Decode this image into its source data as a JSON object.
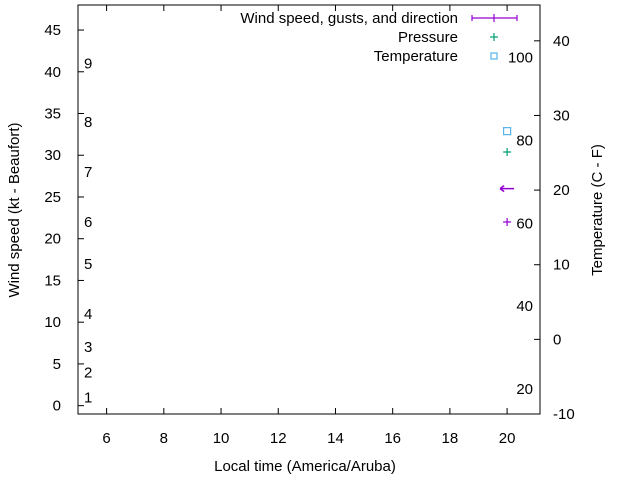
{
  "chart_data": {
    "type": "scatter",
    "xlabel": "Local time (America/Aruba)",
    "ylabel": "Wind speed (kt - Beaufort)",
    "y2label": "Temperature (C - F)",
    "xlim": [
      5,
      21.15
    ],
    "ylim": [
      -1,
      48
    ],
    "y2lim": [
      -10,
      44.8
    ],
    "xticks": [
      6,
      8,
      10,
      12,
      14,
      16,
      18,
      20
    ],
    "yticks": [
      0,
      5,
      10,
      15,
      20,
      25,
      30,
      35,
      40,
      45
    ],
    "y2ticks": [
      -10,
      0,
      10,
      20,
      30,
      40
    ],
    "beaufort_labels": [
      {
        "label": "1",
        "kt": 1
      },
      {
        "label": "2",
        "kt": 4
      },
      {
        "label": "3",
        "kt": 7
      },
      {
        "label": "4",
        "kt": 11
      },
      {
        "label": "5",
        "kt": 17
      },
      {
        "label": "6",
        "kt": 22
      },
      {
        "label": "7",
        "kt": 28
      },
      {
        "label": "8",
        "kt": 34
      },
      {
        "label": "9",
        "kt": 41
      }
    ],
    "fahrenheit_labels": [
      {
        "label": "20",
        "f": 20
      },
      {
        "label": "40",
        "f": 40
      },
      {
        "label": "60",
        "f": 60
      },
      {
        "label": "80",
        "f": 80
      },
      {
        "label": "100",
        "f": 100
      }
    ],
    "legend": {
      "placement": "top-right",
      "entries": [
        "Wind speed, gusts, and direction",
        "Pressure",
        "Temperature"
      ]
    },
    "series": [
      {
        "name": "Wind speed, gusts, and direction",
        "color": "#9400d3",
        "points": [
          {
            "x": 20,
            "y": 26,
            "direction": "west-arrow"
          },
          {
            "x": 20,
            "y": 22
          }
        ]
      },
      {
        "name": "Pressure",
        "color": "#009e73",
        "axis": "y2",
        "points": [
          {
            "x": 20,
            "y": 25.1
          }
        ]
      },
      {
        "name": "Temperature",
        "color": "#56b4e9",
        "axis": "y2",
        "points": [
          {
            "x": 20,
            "y": 27.9
          }
        ]
      }
    ]
  }
}
